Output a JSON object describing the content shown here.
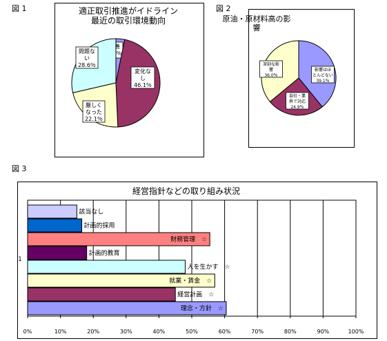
{
  "figures": {
    "fig1": "図 1",
    "fig2": "図 2",
    "fig3": "図 3"
  },
  "colors": {
    "lavender": "#9999ff",
    "plum": "#993366",
    "cream": "#ffffcc",
    "lightcyan": "#ccffff",
    "lightlavender": "#ccccff",
    "blue": "#0066cc",
    "salmon": "#ff8080",
    "darkpurple": "#660066"
  },
  "chart_data": [
    {
      "type": "pie",
      "title_lines": [
        "適正取引推進がイドライン",
        "最近の取引環境動向"
      ],
      "slices": [
        {
          "label_lines": [
            "改善"
          ],
          "pct_label": "3.2％",
          "value": 3.2,
          "color": "#9999ff"
        },
        {
          "label_lines": [
            "変化な",
            "し"
          ],
          "pct_label": "46.1％",
          "value": 46.1,
          "color": "#993366"
        },
        {
          "label_lines": [
            "厳しく",
            "なった"
          ],
          "pct_label": "22.1％",
          "value": 22.1,
          "color": "#ffffcc"
        },
        {
          "label_lines": [
            "問題な",
            "い"
          ],
          "pct_label": "28.6％",
          "value": 28.6,
          "color": "#ccffff"
        }
      ]
    },
    {
      "type": "pie",
      "title_lines": [
        "原油・原材料高の影",
        "響"
      ],
      "slices": [
        {
          "label_lines": [
            "影響はほ",
            "とんどない"
          ],
          "pct_label": "39.1％",
          "value": 39.1,
          "color": "#9999ff"
        },
        {
          "label_lines": [
            "自社・業",
            "界で対応"
          ],
          "pct_label": "24.9％",
          "value": 24.9,
          "color": "#993366"
        },
        {
          "label_lines": [
            "深刻な影",
            "響"
          ],
          "pct_label": "36.0％",
          "value": 36.0,
          "color": "#ffffcc"
        }
      ]
    },
    {
      "type": "bar",
      "orientation": "horizontal",
      "title": "経営指針などの取り組み状況",
      "category_axis_label": "1",
      "xlim": [
        0,
        100
      ],
      "x_ticks": [
        "0%",
        "10%",
        "20%",
        "30%",
        "40%",
        "50%",
        "60%",
        "70%",
        "80%",
        "90%",
        "100%"
      ],
      "grid": true,
      "series": [
        {
          "name": "該当なし",
          "value": 15,
          "color": "#ccccff"
        },
        {
          "name": "計画的採用",
          "value": 16.5,
          "color": "#0066cc"
        },
        {
          "name": "財務管理　☆",
          "value": 55.5,
          "color": "#ff8080"
        },
        {
          "name": "計画的教育",
          "value": 18,
          "color": "#660066"
        },
        {
          "name": "人を生かす　☆",
          "value": 48,
          "color": "#ccffff"
        },
        {
          "name": "就業・賃金　☆",
          "value": 57,
          "color": "#ffffcc"
        },
        {
          "name": "経営計画　☆",
          "value": 45,
          "color": "#993366"
        },
        {
          "name": "理念・方針　☆",
          "value": 60.5,
          "color": "#9999ff"
        }
      ]
    }
  ]
}
